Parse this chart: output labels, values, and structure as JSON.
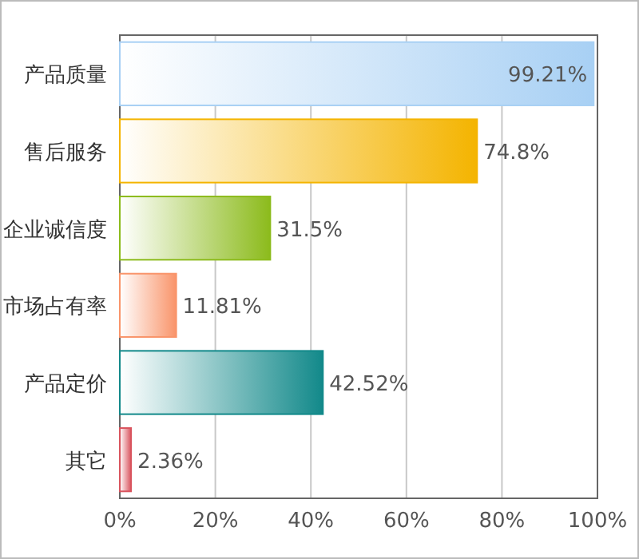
{
  "chart_data": {
    "type": "bar",
    "orientation": "horizontal",
    "categories": [
      "产品质量",
      "售后服务",
      "企业诚信度",
      "市场占有率",
      "产品定价",
      "其它"
    ],
    "values": [
      99.21,
      74.8,
      31.5,
      11.81,
      42.52,
      2.36
    ],
    "value_labels": [
      "99.21%",
      "74.8%",
      "31.5%",
      "11.81%",
      "42.52%",
      "2.36%"
    ],
    "colors": [
      "#a8d0f4",
      "#f4b400",
      "#8cbb1c",
      "#f9946a",
      "#12898a",
      "#d9545e"
    ],
    "xlim": [
      0,
      100
    ],
    "xticks": [
      {
        "value": 0,
        "label": "0%"
      },
      {
        "value": 20,
        "label": "20%"
      },
      {
        "value": 40,
        "label": "40%"
      },
      {
        "value": 60,
        "label": "60%"
      },
      {
        "value": 80,
        "label": "80%"
      },
      {
        "value": 100,
        "label": "100%"
      }
    ],
    "grid": "x"
  }
}
